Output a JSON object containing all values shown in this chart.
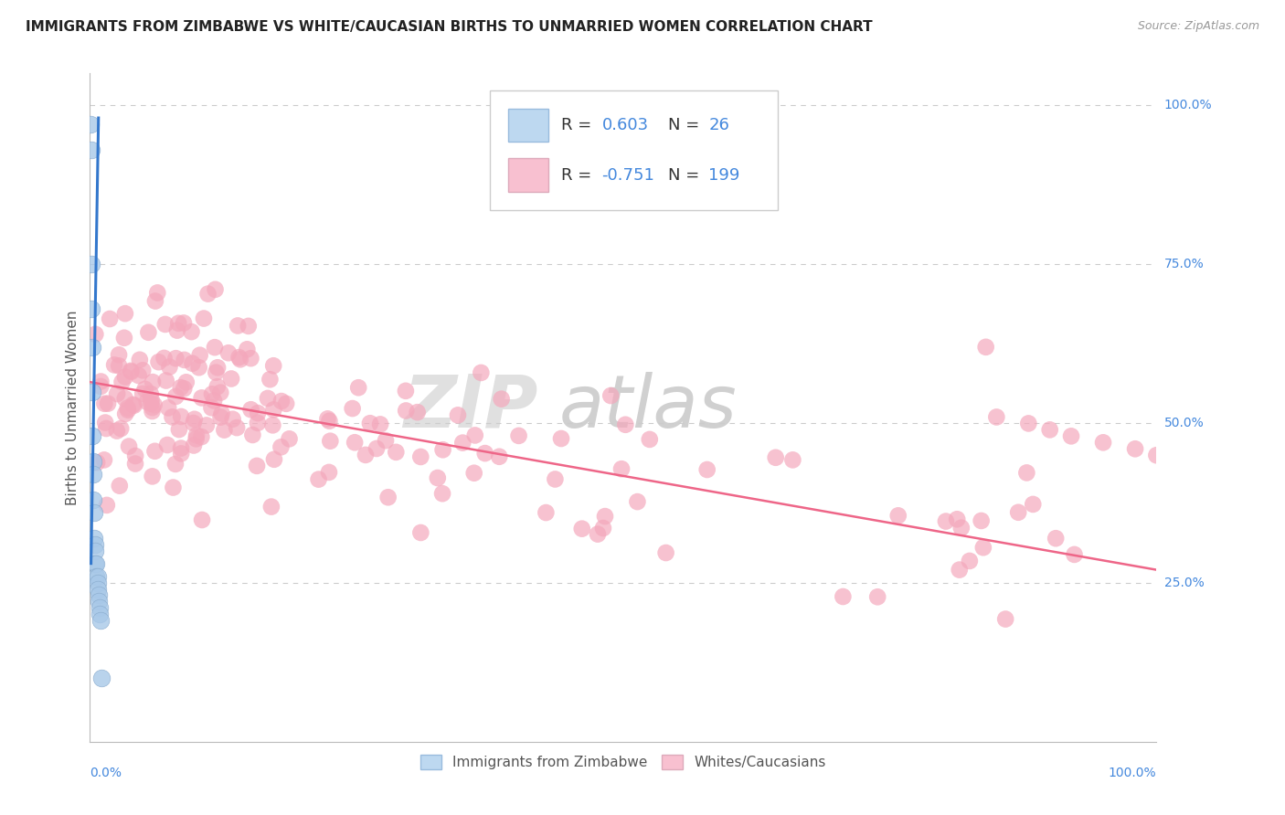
{
  "title": "IMMIGRANTS FROM ZIMBABWE VS WHITE/CAUCASIAN BIRTHS TO UNMARRIED WOMEN CORRELATION CHART",
  "source": "Source: ZipAtlas.com",
  "ylabel": "Births to Unmarried Women",
  "blue_color": "#A8C8E8",
  "pink_color": "#F4A8BC",
  "blue_line_color": "#3377CC",
  "pink_line_color": "#EE6688",
  "legend_blue_fill": "#BDD8F0",
  "legend_pink_fill": "#F8C0D0",
  "label_color": "#4488DD",
  "watermark_zip_color": "#CCCCCC",
  "watermark_atlas_color": "#CCCCCC",
  "pink_line_x": [
    0.0,
    1.0
  ],
  "pink_line_y": [
    0.565,
    0.27
  ],
  "blue_line_x": [
    0.001,
    0.008
  ],
  "blue_line_y": [
    0.28,
    0.98
  ],
  "xmin": 0.0,
  "xmax": 1.0,
  "ymin": 0.0,
  "ymax": 1.05,
  "ytick_vals": [
    1.0,
    0.75,
    0.5,
    0.25
  ],
  "ytick_labels": [
    "100.0%",
    "75.0%",
    "50.0%",
    "25.0%"
  ]
}
